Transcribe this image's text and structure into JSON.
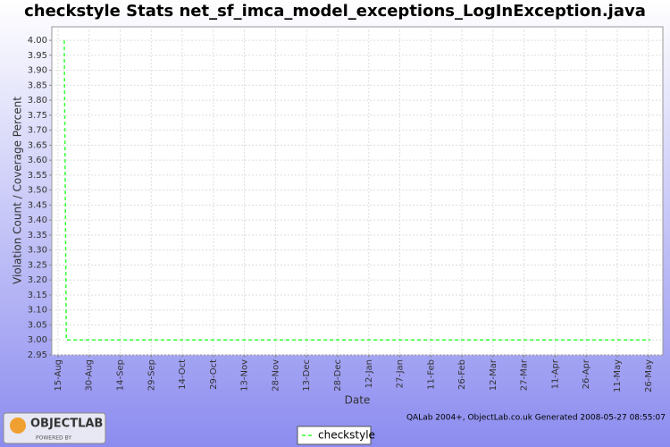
{
  "chart_data": {
    "type": "line",
    "title": "checkstyle  Stats net_sf_imca_model_exceptions_LogInException.java",
    "x_label": "Date",
    "y_label": "Violation Count / Coverage Percent",
    "series": [
      {
        "name": "checkstyle",
        "color": "#33ff33",
        "x": [
          3,
          4,
          286
        ],
        "values": [
          4.0,
          3.0,
          3.0
        ]
      }
    ],
    "xlim": [
      -3,
      292
    ],
    "xticks": [
      {
        "value": 0,
        "label": "15-Aug"
      },
      {
        "value": 15,
        "label": "30-Aug"
      },
      {
        "value": 30,
        "label": "14-Sep"
      },
      {
        "value": 45,
        "label": "29-Sep"
      },
      {
        "value": 60,
        "label": "14-Oct"
      },
      {
        "value": 75,
        "label": "29-Oct"
      },
      {
        "value": 90,
        "label": "13-Nov"
      },
      {
        "value": 105,
        "label": "28-Nov"
      },
      {
        "value": 120,
        "label": "13-Dec"
      },
      {
        "value": 135,
        "label": "28-Dec"
      },
      {
        "value": 150,
        "label": "12-Jan"
      },
      {
        "value": 165,
        "label": "27-Jan"
      },
      {
        "value": 180,
        "label": "11-Feb"
      },
      {
        "value": 195,
        "label": "26-Feb"
      },
      {
        "value": 210,
        "label": "12-Mar"
      },
      {
        "value": 225,
        "label": "27-Mar"
      },
      {
        "value": 240,
        "label": "11-Apr"
      },
      {
        "value": 255,
        "label": "26-Apr"
      },
      {
        "value": 270,
        "label": "11-May"
      },
      {
        "value": 285,
        "label": "26-May"
      }
    ],
    "ylim": [
      2.95,
      4.045
    ],
    "yticks": [
      2.95,
      {
        "value": 3.0,
        "label": "3.00"
      },
      3.05,
      {
        "value": 3.1,
        "label": "3.10"
      },
      3.15,
      {
        "value": 3.2,
        "label": "3.20"
      },
      3.25,
      {
        "value": 3.3,
        "label": "3.30"
      },
      3.35,
      {
        "value": 3.4,
        "label": "3.40"
      },
      3.45,
      {
        "value": 3.5,
        "label": "3.50"
      },
      3.55,
      {
        "value": 3.6,
        "label": "3.60"
      },
      3.65,
      {
        "value": 3.7,
        "label": "3.70"
      },
      3.75,
      {
        "value": 3.8,
        "label": "3.80"
      },
      3.85,
      {
        "value": 3.9,
        "label": "3.90"
      },
      3.95,
      {
        "value": 4.0,
        "label": "4.00"
      }
    ],
    "grid": true,
    "legend": "bottom",
    "footer": "QALab 2004+, ObjectLab.co.uk  Generated 2008-05-27 08:55:07",
    "logo_text": "OBJECTLAB",
    "logo_subtext": "POWERED BY"
  }
}
